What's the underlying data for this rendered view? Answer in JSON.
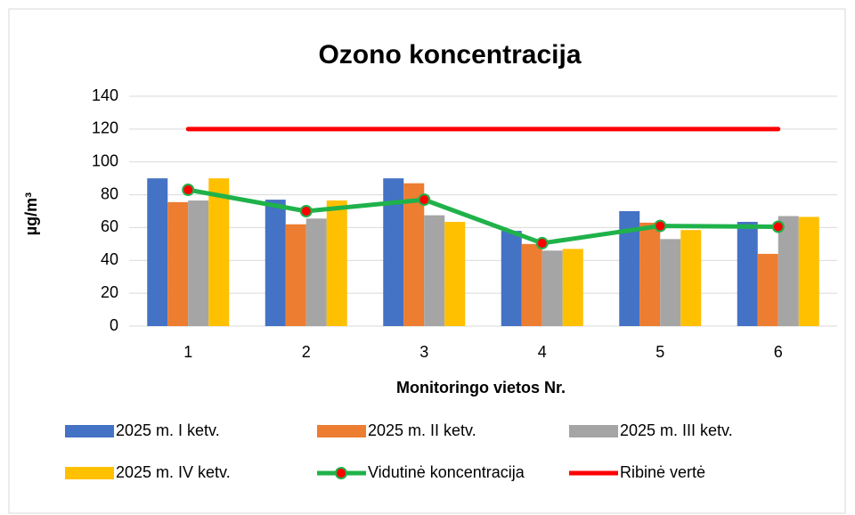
{
  "chart_data": {
    "type": "bar",
    "title": "Ozono koncentracija",
    "x_label": "Monitoringo vietos Nr.",
    "y_label": "µg/m³",
    "categories": [
      "1",
      "2",
      "3",
      "4",
      "5",
      "6"
    ],
    "series": [
      {
        "name": "2025 m. I ketv.",
        "type": "bar",
        "color": "#4472c4",
        "values": [
          90,
          77,
          90,
          58,
          70,
          63.5
        ]
      },
      {
        "name": "2025 m. II ketv.",
        "type": "bar",
        "color": "#ed7d31",
        "values": [
          75.5,
          62,
          87,
          50,
          63,
          44
        ]
      },
      {
        "name": "2025 m. III ketv.",
        "type": "bar",
        "color": "#a5a5a5",
        "values": [
          76.5,
          65.5,
          67.5,
          46,
          53,
          67
        ]
      },
      {
        "name": "2025 m. IV ketv.",
        "type": "bar",
        "color": "#ffc000",
        "values": [
          90,
          76.5,
          63.5,
          47,
          58.5,
          66.5
        ]
      },
      {
        "name": "Vidutinė koncentracija",
        "type": "line",
        "color": "#1fb24a",
        "marker_color": "#ff0000",
        "values": [
          83,
          70,
          77,
          50.5,
          61,
          60.5
        ]
      },
      {
        "name": "Ribinė vertė",
        "type": "line",
        "color": "#ff0000",
        "values": [
          120,
          120,
          120,
          120,
          120,
          120
        ]
      }
    ],
    "ylim": [
      0,
      140
    ],
    "yticks": [
      0,
      20,
      40,
      60,
      80,
      100,
      120,
      140
    ],
    "grid": true,
    "legend": "bottom"
  }
}
